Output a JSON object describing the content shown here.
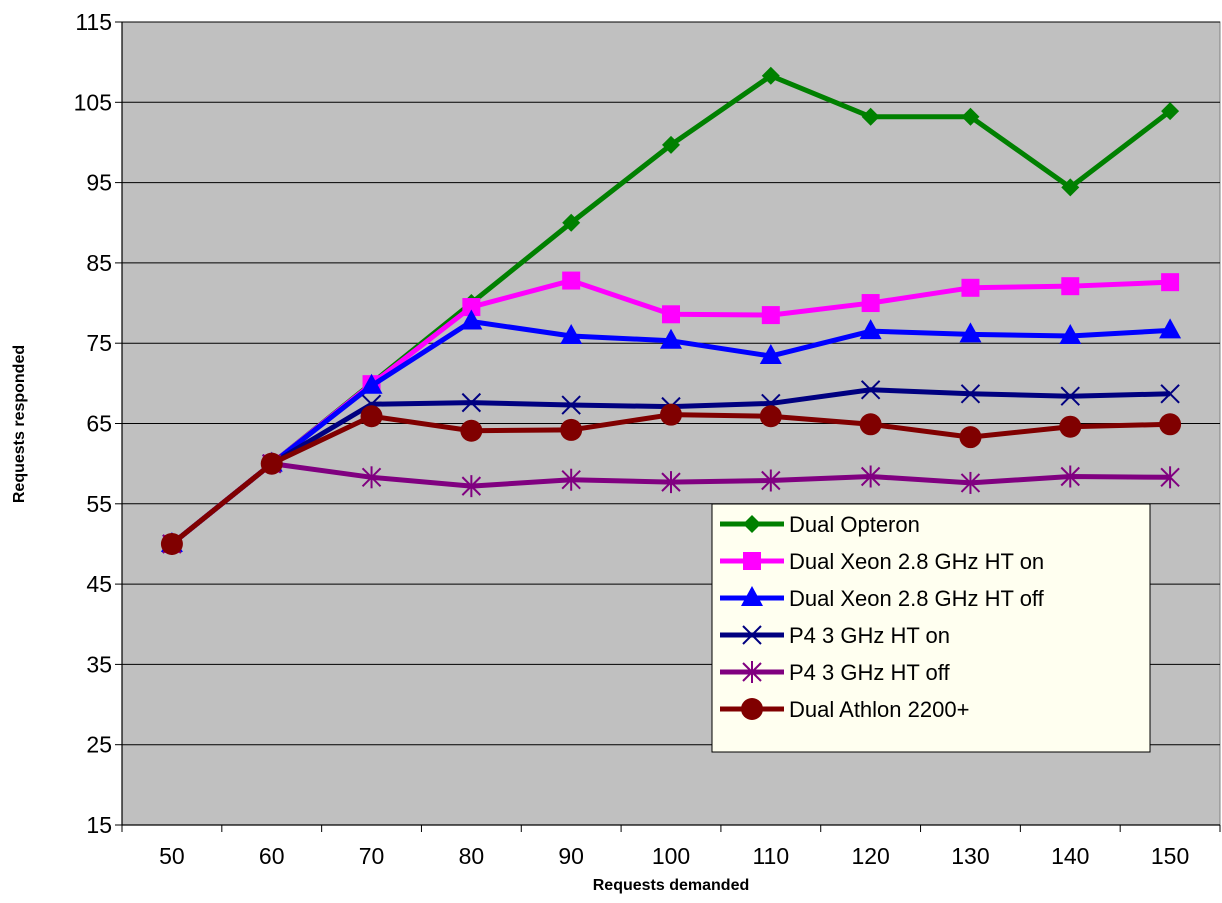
{
  "chart_data": {
    "type": "line",
    "title": "",
    "xlabel": "Requests demanded",
    "ylabel": "Requests responded",
    "categories": [
      "50",
      "60",
      "70",
      "80",
      "90",
      "100",
      "110",
      "120",
      "130",
      "140",
      "150"
    ],
    "ylim": [
      15,
      115
    ],
    "yticks": [
      15,
      25,
      35,
      45,
      55,
      65,
      75,
      85,
      95,
      105,
      115
    ],
    "grid": true,
    "plot_background": "#C0C0C0",
    "legend_position": "bottom-right",
    "series": [
      {
        "name": "Dual Opteron",
        "color": "#008000",
        "marker": "diamond",
        "values": [
          50,
          60,
          70,
          80,
          90,
          99.7,
          108.3,
          103.2,
          103.2,
          94.4,
          103.9
        ]
      },
      {
        "name": "Dual Xeon 2.8 GHz HT on",
        "color": "#FF00FF",
        "marker": "square",
        "values": [
          50,
          60,
          69.9,
          79.5,
          82.8,
          78.6,
          78.5,
          80,
          81.9,
          82.1,
          82.6
        ]
      },
      {
        "name": "Dual Xeon 2.8 GHz HT off",
        "color": "#0000FF",
        "marker": "triangle",
        "values": [
          50,
          60,
          69.7,
          77.7,
          75.9,
          75.3,
          73.4,
          76.5,
          76.1,
          75.9,
          76.6
        ]
      },
      {
        "name": "P4 3 GHz HT on",
        "color": "#000080",
        "marker": "x",
        "values": [
          50,
          60,
          67.4,
          67.6,
          67.3,
          67.1,
          67.5,
          69.2,
          68.7,
          68.4,
          68.7
        ]
      },
      {
        "name": "P4 3 GHz HT off",
        "color": "#800080",
        "marker": "star",
        "values": [
          50,
          60,
          58.3,
          57.2,
          58,
          57.7,
          57.9,
          58.4,
          57.6,
          58.4,
          58.3
        ]
      },
      {
        "name": "Dual Athlon 2200+",
        "color": "#800000",
        "marker": "circle",
        "values": [
          50,
          60,
          65.9,
          64.1,
          64.2,
          66.1,
          65.9,
          64.9,
          63.3,
          64.6,
          64.9
        ]
      }
    ]
  }
}
